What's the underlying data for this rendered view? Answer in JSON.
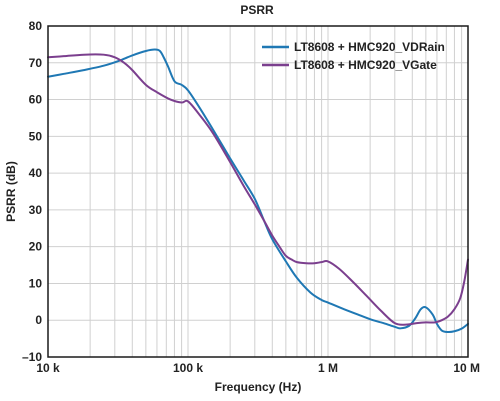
{
  "chart_data": {
    "type": "line",
    "title": "PSRR",
    "xlabel": "Frequency (Hz)",
    "ylabel": "PSRR (dB)",
    "xscale": "log",
    "xlim": [
      10000,
      10000000
    ],
    "ylim": [
      -10,
      80
    ],
    "x_ticks": [
      {
        "value": 10000,
        "label": "10 k"
      },
      {
        "value": 100000,
        "label": "100 k"
      },
      {
        "value": 1000000,
        "label": "1 M"
      },
      {
        "value": 10000000,
        "label": "10 M"
      }
    ],
    "y_ticks": [
      {
        "value": -10,
        "label": "–10"
      },
      {
        "value": 0,
        "label": "0"
      },
      {
        "value": 10,
        "label": "10"
      },
      {
        "value": 20,
        "label": "20"
      },
      {
        "value": 30,
        "label": "30"
      },
      {
        "value": 40,
        "label": "40"
      },
      {
        "value": 50,
        "label": "50"
      },
      {
        "value": 60,
        "label": "60"
      },
      {
        "value": 70,
        "label": "70"
      },
      {
        "value": 80,
        "label": "80"
      }
    ],
    "grid": true,
    "legend_position": "top-right",
    "series": [
      {
        "name": "LT8608 + HMC920_VDRain",
        "color": "#1f78b4",
        "x": [
          10000,
          13000,
          18000,
          25000,
          32000,
          40000,
          50000,
          58000,
          63000,
          67000,
          72000,
          80000,
          90000,
          100000,
          120000,
          150000,
          200000,
          250000,
          300000,
          350000,
          400000,
          500000,
          600000,
          750000,
          900000,
          1000000,
          1300000,
          1700000,
          2100000,
          2500000,
          3000000,
          3300000,
          3800000,
          4200000,
          4600000,
          5000000,
          5600000,
          6000000,
          6500000,
          7200000,
          8000000,
          9000000,
          10000000
        ],
        "y": [
          66.2,
          67.0,
          68.0,
          69.2,
          70.5,
          72.0,
          73.2,
          73.6,
          73.2,
          71.5,
          69.0,
          65.0,
          64.0,
          62.5,
          58.0,
          52.0,
          44.0,
          38.0,
          33.0,
          27.0,
          22.0,
          16.0,
          11.5,
          7.5,
          5.5,
          4.8,
          3.0,
          1.3,
          0.0,
          -0.8,
          -1.8,
          -2.2,
          -1.5,
          0.5,
          3.0,
          3.5,
          1.5,
          -1.0,
          -2.8,
          -3.2,
          -3.0,
          -2.3,
          -1.0
        ]
      },
      {
        "name": "LT8608 + HMC920_VGate",
        "color": "#7b3f8e",
        "x": [
          10000,
          13000,
          18000,
          25000,
          30000,
          35000,
          40000,
          50000,
          60000,
          75000,
          90000,
          100000,
          120000,
          150000,
          200000,
          250000,
          300000,
          350000,
          400000,
          450000,
          500000,
          550000,
          600000,
          700000,
          800000,
          900000,
          1000000,
          1200000,
          1500000,
          1900000,
          2400000,
          3000000,
          3600000,
          4300000,
          5000000,
          5800000,
          6500000,
          7200000,
          8000000,
          8800000,
          9400000,
          10000000
        ],
        "y": [
          71.5,
          71.8,
          72.2,
          72.2,
          71.5,
          70.0,
          68.0,
          64.0,
          62.0,
          60.0,
          59.2,
          59.5,
          56.0,
          51.0,
          43.0,
          36.5,
          31.5,
          27.0,
          23.0,
          20.0,
          17.5,
          16.5,
          15.8,
          15.5,
          15.5,
          15.8,
          16.0,
          14.0,
          10.5,
          6.5,
          2.5,
          -0.8,
          -1.2,
          -0.8,
          -0.6,
          -0.6,
          0.0,
          1.0,
          3.0,
          6.0,
          10.5,
          16.5
        ]
      }
    ]
  }
}
